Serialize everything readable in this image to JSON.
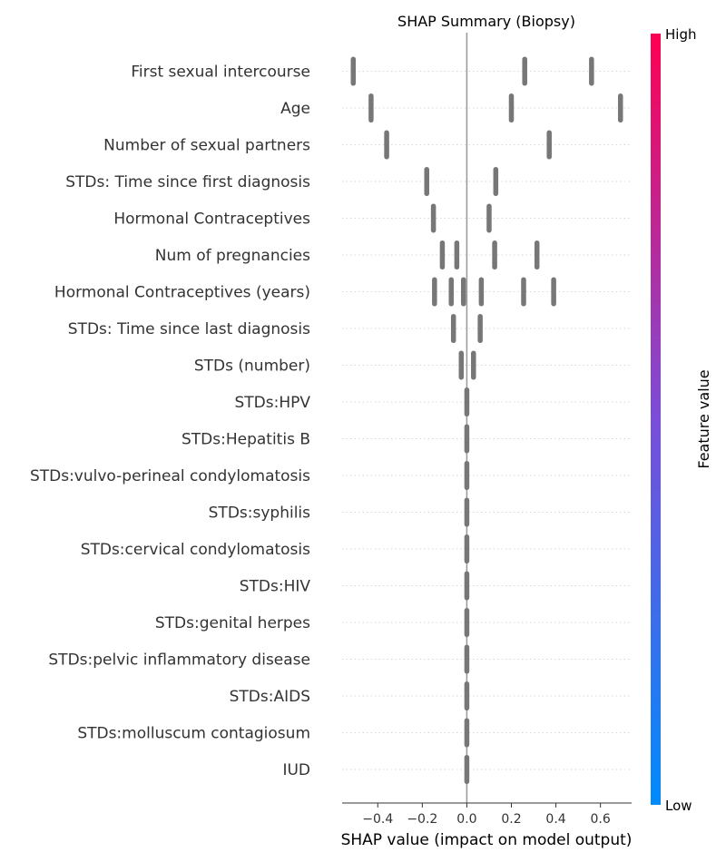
{
  "chart_data": {
    "type": "scatter",
    "title": "SHAP Summary (Biopsy)",
    "xlabel": "SHAP value (impact on model output)",
    "xlim": [
      -0.56,
      0.74
    ],
    "xticks": [
      -0.4,
      -0.2,
      0.0,
      0.2,
      0.4,
      0.6
    ],
    "xtick_labels": [
      "−0.4",
      "−0.2",
      "0.0",
      "0.2",
      "0.4",
      "0.6"
    ],
    "grid": false,
    "colorbar": {
      "label": "Feature value",
      "high_label": "High",
      "low_label": "Low",
      "low_color": "#008bfb",
      "high_color": "#ff0052"
    },
    "point_color": "#777777",
    "features": [
      {
        "name": "First sexual intercourse",
        "points": [
          -0.51,
          0.26,
          0.56
        ]
      },
      {
        "name": "Age",
        "points": [
          -0.43,
          0.2,
          0.69
        ]
      },
      {
        "name": "Number of sexual partners",
        "points": [
          -0.36,
          0.37
        ]
      },
      {
        "name": "STDs: Time since first diagnosis",
        "points": [
          -0.18,
          0.13
        ]
      },
      {
        "name": "Hormonal Contraceptives",
        "points": [
          -0.15,
          0.1
        ]
      },
      {
        "name": "Num of pregnancies",
        "points": [
          -0.11,
          -0.045,
          0.125,
          0.315
        ]
      },
      {
        "name": "Hormonal Contraceptives (years)",
        "points": [
          -0.145,
          -0.07,
          -0.015,
          0.065,
          0.255,
          0.39
        ]
      },
      {
        "name": "STDs: Time since last diagnosis",
        "points": [
          -0.06,
          0.06
        ]
      },
      {
        "name": "STDs (number)",
        "points": [
          -0.025,
          0.03
        ]
      },
      {
        "name": "STDs:HPV",
        "points": [
          0.0
        ]
      },
      {
        "name": "STDs:Hepatitis B",
        "points": [
          0.0
        ]
      },
      {
        "name": "STDs:vulvo-perineal condylomatosis",
        "points": [
          0.0
        ]
      },
      {
        "name": "STDs:syphilis",
        "points": [
          0.0
        ]
      },
      {
        "name": "STDs:cervical condylomatosis",
        "points": [
          0.0
        ]
      },
      {
        "name": "STDs:HIV",
        "points": [
          0.0
        ]
      },
      {
        "name": "STDs:genital herpes",
        "points": [
          0.0
        ]
      },
      {
        "name": "STDs:pelvic inflammatory disease",
        "points": [
          0.0
        ]
      },
      {
        "name": "STDs:AIDS",
        "points": [
          0.0
        ]
      },
      {
        "name": "STDs:molluscum contagiosum",
        "points": [
          0.0
        ]
      },
      {
        "name": "IUD",
        "points": [
          0.0
        ]
      }
    ]
  }
}
